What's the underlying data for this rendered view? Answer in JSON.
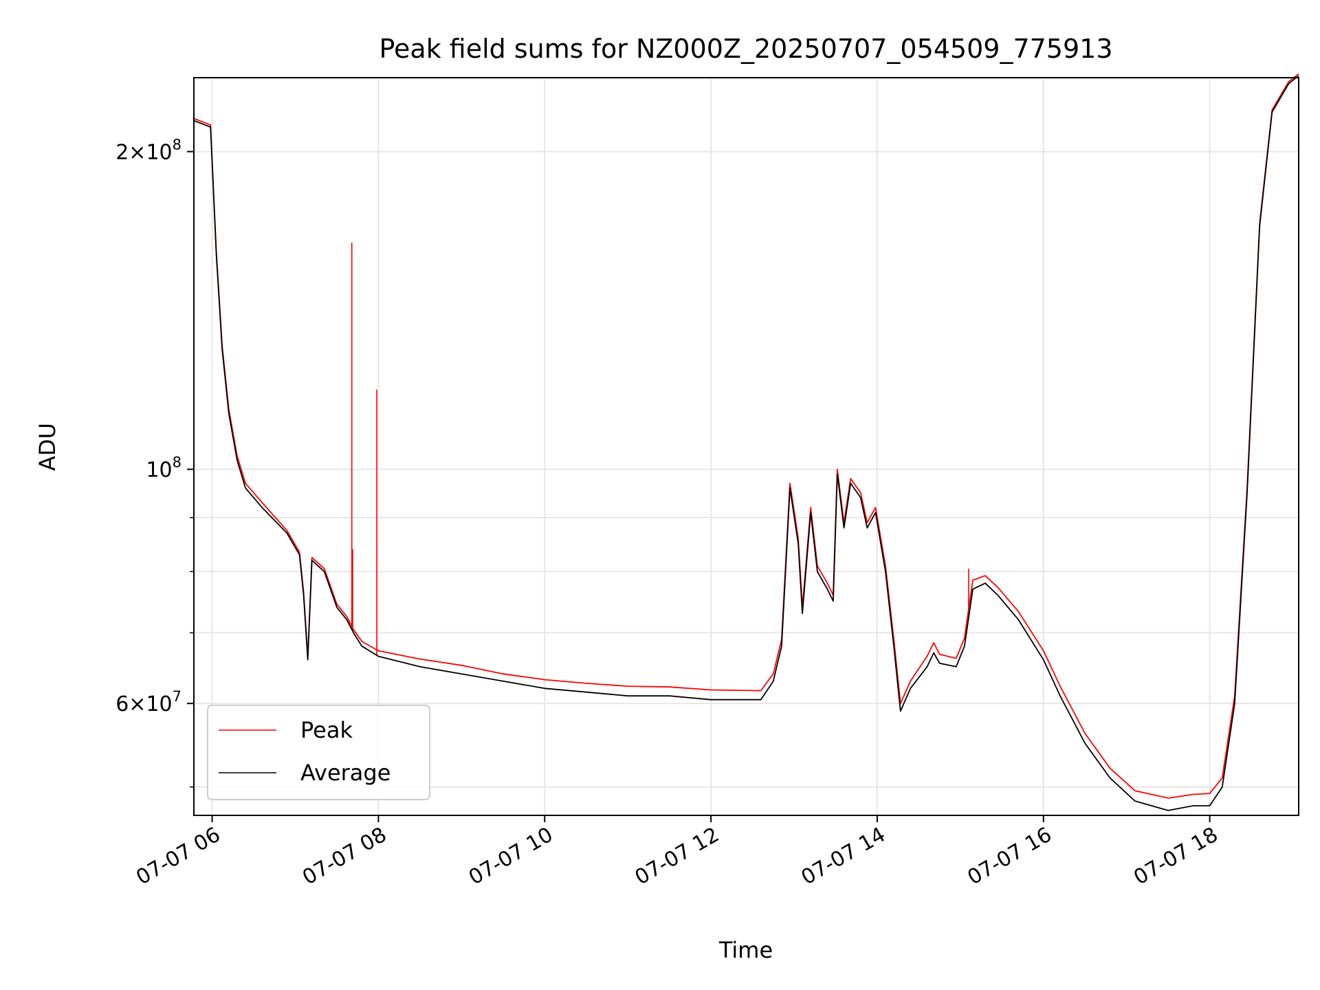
{
  "chart_data": {
    "type": "line",
    "title": "Peak field sums for NZ000Z_20250707_054509_775913",
    "xlabel": "Time",
    "ylabel": "ADU",
    "yscale": "log",
    "ylim": [
      47000000,
      235000000
    ],
    "xlim_hours": [
      5.78,
      19.07
    ],
    "grid": true,
    "legend_position": "lower-left",
    "x_ticks": [
      {
        "hour": 6,
        "label": "07-07 06"
      },
      {
        "hour": 8,
        "label": "07-07 08"
      },
      {
        "hour": 10,
        "label": "07-07 10"
      },
      {
        "hour": 12,
        "label": "07-07 12"
      },
      {
        "hour": 14,
        "label": "07-07 14"
      },
      {
        "hour": 16,
        "label": "07-07 16"
      },
      {
        "hour": 18,
        "label": "07-07 18"
      }
    ],
    "y_major_ticks": [
      {
        "value": 60000000,
        "mantissa": "6",
        "exp": "7",
        "sci": true
      },
      {
        "value": 100000000,
        "mantissa": "",
        "exp": "8",
        "sci": false
      },
      {
        "value": 200000000,
        "mantissa": "2",
        "exp": "8",
        "sci": true
      }
    ],
    "y_minor_ticks": [
      50000000,
      70000000,
      80000000,
      90000000
    ],
    "series": [
      {
        "name": "Average",
        "color": "#000000",
        "points": [
          [
            5.78,
            214000000
          ],
          [
            5.98,
            211000000
          ],
          [
            6.05,
            160000000
          ],
          [
            6.12,
            130000000
          ],
          [
            6.2,
            113000000
          ],
          [
            6.3,
            102000000
          ],
          [
            6.4,
            96000000
          ],
          [
            6.6,
            92000000
          ],
          [
            6.9,
            87000000
          ],
          [
            7.05,
            83000000
          ],
          [
            7.1,
            76000000
          ],
          [
            7.15,
            66000000
          ],
          [
            7.2,
            82000000
          ],
          [
            7.35,
            80000000
          ],
          [
            7.5,
            74000000
          ],
          [
            7.62,
            72000000
          ],
          [
            7.7,
            70000000
          ],
          [
            7.8,
            68000000
          ],
          [
            8.0,
            66500000
          ],
          [
            8.5,
            65000000
          ],
          [
            9.0,
            64000000
          ],
          [
            9.5,
            63000000
          ],
          [
            10.0,
            62000000
          ],
          [
            10.5,
            61500000
          ],
          [
            11.0,
            61000000
          ],
          [
            11.5,
            61000000
          ],
          [
            12.0,
            60500000
          ],
          [
            12.6,
            60500000
          ],
          [
            12.75,
            63000000
          ],
          [
            12.85,
            68000000
          ],
          [
            12.95,
            96000000
          ],
          [
            13.05,
            85000000
          ],
          [
            13.1,
            73000000
          ],
          [
            13.2,
            91000000
          ],
          [
            13.28,
            80000000
          ],
          [
            13.4,
            77000000
          ],
          [
            13.47,
            75000000
          ],
          [
            13.52,
            99000000
          ],
          [
            13.6,
            88000000
          ],
          [
            13.68,
            97000000
          ],
          [
            13.8,
            94000000
          ],
          [
            13.88,
            88000000
          ],
          [
            13.98,
            91000000
          ],
          [
            14.1,
            80000000
          ],
          [
            14.2,
            68000000
          ],
          [
            14.28,
            59000000
          ],
          [
            14.4,
            62000000
          ],
          [
            14.6,
            65000000
          ],
          [
            14.68,
            67000000
          ],
          [
            14.75,
            65500000
          ],
          [
            14.95,
            65000000
          ],
          [
            15.05,
            68000000
          ],
          [
            15.15,
            77000000
          ],
          [
            15.3,
            78000000
          ],
          [
            15.45,
            76000000
          ],
          [
            15.7,
            72000000
          ],
          [
            16.0,
            66000000
          ],
          [
            16.2,
            61000000
          ],
          [
            16.5,
            55000000
          ],
          [
            16.8,
            51000000
          ],
          [
            17.1,
            48500000
          ],
          [
            17.3,
            48000000
          ],
          [
            17.5,
            47500000
          ],
          [
            17.8,
            48000000
          ],
          [
            18.0,
            48000000
          ],
          [
            18.15,
            50000000
          ],
          [
            18.3,
            60000000
          ],
          [
            18.45,
            95000000
          ],
          [
            18.6,
            170000000
          ],
          [
            18.75,
            218000000
          ],
          [
            18.95,
            232000000
          ],
          [
            19.07,
            236000000
          ]
        ]
      },
      {
        "name": "Peak",
        "color": "#ff0000",
        "points": [
          [
            5.78,
            215000000
          ],
          [
            5.98,
            212000000
          ],
          [
            6.05,
            161000000
          ],
          [
            6.12,
            131000000
          ],
          [
            6.2,
            114000000
          ],
          [
            6.3,
            103000000
          ],
          [
            6.4,
            97000000
          ],
          [
            6.6,
            93000000
          ],
          [
            6.9,
            87500000
          ],
          [
            7.05,
            83500000
          ],
          [
            7.1,
            76500000
          ],
          [
            7.15,
            66500000
          ],
          [
            7.2,
            82500000
          ],
          [
            7.35,
            80500000
          ],
          [
            7.5,
            74500000
          ],
          [
            7.62,
            72500000
          ],
          [
            7.7,
            70500000
          ],
          [
            7.8,
            68700000
          ],
          [
            8.0,
            67300000
          ],
          [
            8.5,
            66100000
          ],
          [
            9.0,
            65200000
          ],
          [
            9.5,
            64000000
          ],
          [
            10.0,
            63200000
          ],
          [
            10.5,
            62700000
          ],
          [
            11.0,
            62300000
          ],
          [
            11.5,
            62200000
          ],
          [
            12.0,
            61800000
          ],
          [
            12.6,
            61700000
          ],
          [
            12.75,
            64000000
          ],
          [
            12.85,
            69000000
          ],
          [
            12.95,
            97000000
          ],
          [
            13.05,
            86000000
          ],
          [
            13.1,
            74000000
          ],
          [
            13.2,
            92000000
          ],
          [
            13.28,
            81000000
          ],
          [
            13.4,
            78000000
          ],
          [
            13.47,
            76000000
          ],
          [
            13.52,
            100000000
          ],
          [
            13.6,
            89000000
          ],
          [
            13.68,
            98000000
          ],
          [
            13.8,
            95000000
          ],
          [
            13.88,
            89000000
          ],
          [
            13.98,
            92000000
          ],
          [
            14.1,
            81000000
          ],
          [
            14.2,
            69000000
          ],
          [
            14.28,
            60000000
          ],
          [
            14.4,
            63000000
          ],
          [
            14.6,
            66500000
          ],
          [
            14.68,
            68500000
          ],
          [
            14.75,
            66800000
          ],
          [
            14.95,
            66200000
          ],
          [
            15.05,
            69200000
          ],
          [
            15.15,
            78500000
          ],
          [
            15.3,
            79300000
          ],
          [
            15.45,
            77300000
          ],
          [
            15.7,
            73300000
          ],
          [
            16.0,
            67300000
          ],
          [
            16.2,
            62300000
          ],
          [
            16.5,
            56200000
          ],
          [
            16.8,
            52100000
          ],
          [
            17.1,
            49600000
          ],
          [
            17.3,
            49200000
          ],
          [
            17.5,
            48800000
          ],
          [
            17.8,
            49200000
          ],
          [
            18.0,
            49300000
          ],
          [
            18.15,
            51000000
          ],
          [
            18.3,
            61000000
          ],
          [
            18.45,
            96000000
          ],
          [
            18.6,
            171000000
          ],
          [
            18.75,
            219000000
          ],
          [
            18.95,
            233000000
          ],
          [
            19.07,
            237000000
          ]
        ],
        "spikes": [
          [
            7.68,
            164000000
          ],
          [
            7.69,
            84000000
          ],
          [
            7.98,
            119000000
          ],
          [
            15.1,
            80500000
          ]
        ]
      }
    ],
    "legend": [
      {
        "label": "Peak",
        "color": "#ff0000"
      },
      {
        "label": "Average",
        "color": "#000000"
      }
    ]
  }
}
